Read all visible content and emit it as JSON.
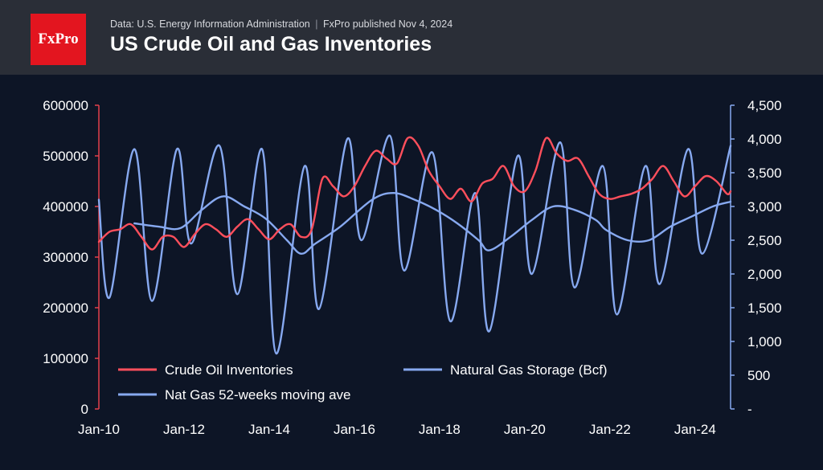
{
  "header": {
    "logo_text": "FxPro",
    "source": "Data: U.S. Energy Information Administration",
    "separator": "|",
    "published": "FxPro published Nov 4, 2024",
    "title": "US Crude Oil and Gas Inventories"
  },
  "colors": {
    "background": "#0d1526",
    "header": "#2a2e37",
    "logo": "#e3151f",
    "crude": "#ff4f5c",
    "gas": "#87a9f0",
    "left_axis": "#e3404c",
    "right_axis": "#87a9f0"
  },
  "chart_data": {
    "type": "line",
    "title": "US Crude Oil and Gas Inventories",
    "x_ticks": [
      "Jan-10",
      "Jan-12",
      "Jan-14",
      "Jan-16",
      "Jan-18",
      "Jan-20",
      "Jan-22",
      "Jan-24"
    ],
    "x_range": [
      "2010-01",
      "2024-11"
    ],
    "y_left": {
      "ticks": [
        "0",
        "100000",
        "200000",
        "300000",
        "400000",
        "500000",
        "600000"
      ],
      "range": [
        0,
        600000
      ]
    },
    "y_right": {
      "ticks": [
        "-",
        "500",
        "1,000",
        "1,500",
        "2,000",
        "2,500",
        "3,000",
        "3,500",
        "4,000",
        "4,500"
      ],
      "range": [
        0,
        4500
      ]
    },
    "legend": {
      "position": "bottom-left",
      "items": [
        "Crude Oil Inventories",
        "Natural Gas Storage (Bcf)",
        "Nat Gas 52-weeks moving ave"
      ]
    },
    "grid": false,
    "series": [
      {
        "name": "Crude Oil Inventories",
        "axis": "left",
        "color": "#ff4f5c",
        "points": [
          [
            "2010-01",
            330000
          ],
          [
            "2010-04",
            350000
          ],
          [
            "2010-07",
            355000
          ],
          [
            "2010-10",
            365000
          ],
          [
            "2011-01",
            340000
          ],
          [
            "2011-04",
            315000
          ],
          [
            "2011-07",
            340000
          ],
          [
            "2011-10",
            340000
          ],
          [
            "2012-01",
            320000
          ],
          [
            "2012-04",
            345000
          ],
          [
            "2012-07",
            365000
          ],
          [
            "2012-10",
            355000
          ],
          [
            "2013-01",
            340000
          ],
          [
            "2013-04",
            360000
          ],
          [
            "2013-07",
            375000
          ],
          [
            "2013-10",
            355000
          ],
          [
            "2014-01",
            335000
          ],
          [
            "2014-04",
            355000
          ],
          [
            "2014-07",
            365000
          ],
          [
            "2014-10",
            340000
          ],
          [
            "2015-01",
            355000
          ],
          [
            "2015-04",
            455000
          ],
          [
            "2015-07",
            440000
          ],
          [
            "2015-10",
            420000
          ],
          [
            "2016-01",
            440000
          ],
          [
            "2016-04",
            480000
          ],
          [
            "2016-07",
            510000
          ],
          [
            "2016-10",
            495000
          ],
          [
            "2017-01",
            485000
          ],
          [
            "2017-04",
            535000
          ],
          [
            "2017-07",
            520000
          ],
          [
            "2017-10",
            470000
          ],
          [
            "2018-01",
            440000
          ],
          [
            "2018-04",
            415000
          ],
          [
            "2018-07",
            435000
          ],
          [
            "2018-10",
            410000
          ],
          [
            "2019-01",
            445000
          ],
          [
            "2019-04",
            455000
          ],
          [
            "2019-07",
            480000
          ],
          [
            "2019-10",
            440000
          ],
          [
            "2020-01",
            430000
          ],
          [
            "2020-04",
            470000
          ],
          [
            "2020-07",
            535000
          ],
          [
            "2020-10",
            505000
          ],
          [
            "2021-01",
            490000
          ],
          [
            "2021-04",
            495000
          ],
          [
            "2021-07",
            460000
          ],
          [
            "2021-10",
            425000
          ],
          [
            "2022-01",
            415000
          ],
          [
            "2022-04",
            420000
          ],
          [
            "2022-07",
            425000
          ],
          [
            "2022-10",
            435000
          ],
          [
            "2023-01",
            455000
          ],
          [
            "2023-04",
            480000
          ],
          [
            "2023-07",
            450000
          ],
          [
            "2023-10",
            420000
          ],
          [
            "2024-01",
            440000
          ],
          [
            "2024-04",
            460000
          ],
          [
            "2024-07",
            450000
          ],
          [
            "2024-10",
            425000
          ],
          [
            "2024-11",
            430000
          ]
        ]
      },
      {
        "name": "Natural Gas Storage (Bcf)",
        "axis": "right",
        "color": "#87a9f0",
        "points": [
          [
            "2010-01",
            3100
          ],
          [
            "2010-04",
            1650
          ],
          [
            "2010-11",
            3850
          ],
          [
            "2011-04",
            1600
          ],
          [
            "2011-11",
            3850
          ],
          [
            "2012-03",
            2450
          ],
          [
            "2012-11",
            3900
          ],
          [
            "2013-04",
            1700
          ],
          [
            "2013-11",
            3850
          ],
          [
            "2014-03",
            820
          ],
          [
            "2014-11",
            3600
          ],
          [
            "2015-03",
            1480
          ],
          [
            "2015-11",
            4000
          ],
          [
            "2016-03",
            2500
          ],
          [
            "2016-11",
            4050
          ],
          [
            "2017-03",
            2050
          ],
          [
            "2017-11",
            3800
          ],
          [
            "2018-04",
            1300
          ],
          [
            "2018-11",
            3200
          ],
          [
            "2019-03",
            1150
          ],
          [
            "2019-11",
            3750
          ],
          [
            "2020-03",
            2000
          ],
          [
            "2020-11",
            3950
          ],
          [
            "2021-03",
            1800
          ],
          [
            "2021-11",
            3600
          ],
          [
            "2022-03",
            1400
          ],
          [
            "2022-11",
            3600
          ],
          [
            "2023-03",
            1850
          ],
          [
            "2023-11",
            3850
          ],
          [
            "2024-03",
            2300
          ],
          [
            "2024-11",
            3900
          ]
        ]
      },
      {
        "name": "Nat Gas 52-weeks moving ave",
        "axis": "right",
        "color": "#87a9f0",
        "points": [
          [
            "2010-11",
            2750
          ],
          [
            "2011-06",
            2700
          ],
          [
            "2011-12",
            2680
          ],
          [
            "2012-06",
            2950
          ],
          [
            "2012-12",
            3150
          ],
          [
            "2013-06",
            3000
          ],
          [
            "2013-12",
            2820
          ],
          [
            "2014-06",
            2500
          ],
          [
            "2014-10",
            2300
          ],
          [
            "2015-02",
            2450
          ],
          [
            "2015-09",
            2700
          ],
          [
            "2016-06",
            3100
          ],
          [
            "2016-12",
            3200
          ],
          [
            "2017-06",
            3100
          ],
          [
            "2017-12",
            2950
          ],
          [
            "2018-06",
            2750
          ],
          [
            "2018-12",
            2500
          ],
          [
            "2019-03",
            2350
          ],
          [
            "2019-09",
            2550
          ],
          [
            "2020-03",
            2800
          ],
          [
            "2020-09",
            3000
          ],
          [
            "2021-03",
            2950
          ],
          [
            "2021-09",
            2800
          ],
          [
            "2021-12",
            2650
          ],
          [
            "2022-06",
            2500
          ],
          [
            "2022-12",
            2500
          ],
          [
            "2023-06",
            2700
          ],
          [
            "2023-12",
            2850
          ],
          [
            "2024-06",
            3000
          ],
          [
            "2024-11",
            3070
          ]
        ]
      }
    ]
  }
}
